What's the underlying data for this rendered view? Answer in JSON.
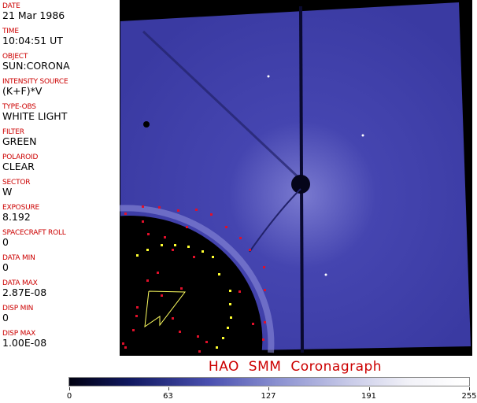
{
  "header_fields": [
    {
      "label": "DATE",
      "value": "21 Mar 1986"
    },
    {
      "label": "TIME",
      "value": "10:04:51 UT"
    },
    {
      "label": "OBJECT",
      "value": "SUN:CORONA"
    },
    {
      "label": "INTENSITY SOURCE",
      "value": "(K+F)*V"
    },
    {
      "label": "TYPE-OBS",
      "value": "WHITE LIGHT"
    },
    {
      "label": "FILTER",
      "value": "GREEN"
    },
    {
      "label": "POLAROID",
      "value": "CLEAR"
    },
    {
      "label": "SECTOR",
      "value": "W"
    },
    {
      "label": "EXPOSURE",
      "value": "8.192"
    },
    {
      "label": "SPACECRAFT ROLL",
      "value": "0"
    },
    {
      "label": "DATA MIN",
      "value": "0"
    },
    {
      "label": "DATA MAX",
      "value": "2.87E-08"
    },
    {
      "label": "DISP MIN",
      "value": "0"
    },
    {
      "label": "DISP MAX",
      "value": "1.00E-08"
    }
  ],
  "title": "HAO   SMM Coronagraph",
  "colorbar": {
    "ticks": [
      "0",
      "63",
      "127",
      "191",
      "255"
    ],
    "min": 0,
    "max": 255
  },
  "colors": {
    "label": "#cc0000",
    "image_blue": "#3c3ca6",
    "marker_red": "#e0102a",
    "marker_yellow": "#ffff30"
  }
}
